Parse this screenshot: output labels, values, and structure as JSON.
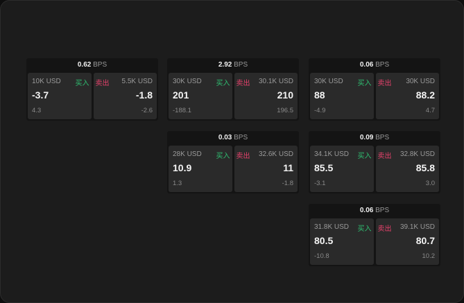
{
  "unit": "BPS",
  "buy_label": "买入",
  "sell_label": "卖出",
  "colors": {
    "buy": "#2fbf71",
    "sell": "#e5416b"
  },
  "cards": [
    {
      "spread": "0.62",
      "bid": {
        "size": "10K USD",
        "price": "-3.7",
        "sub": "4.3"
      },
      "ask": {
        "size": "5.5K USD",
        "price": "-1.8",
        "sub": "-2.6"
      }
    },
    {
      "spread": "2.92",
      "bid": {
        "size": "30K USD",
        "price": "201",
        "sub": "-188.1"
      },
      "ask": {
        "size": "30.1K USD",
        "price": "210",
        "sub": "196.5"
      }
    },
    {
      "spread": "0.06",
      "bid": {
        "size": "30K USD",
        "price": "88",
        "sub": "-4.9"
      },
      "ask": {
        "size": "30K USD",
        "price": "88.2",
        "sub": "4.7"
      }
    },
    {
      "spread": "0.03",
      "bid": {
        "size": "28K USD",
        "price": "10.9",
        "sub": "1.3"
      },
      "ask": {
        "size": "32.6K USD",
        "price": "11",
        "sub": "-1.8"
      }
    },
    {
      "spread": "0.09",
      "bid": {
        "size": "34.1K USD",
        "price": "85.5",
        "sub": "-3.1"
      },
      "ask": {
        "size": "32.8K USD",
        "price": "85.8",
        "sub": "3.0"
      }
    },
    {
      "spread": "0.06",
      "bid": {
        "size": "31.8K USD",
        "price": "80.5",
        "sub": "-10.8"
      },
      "ask": {
        "size": "39.1K USD",
        "price": "80.7",
        "sub": "10.2"
      }
    }
  ]
}
